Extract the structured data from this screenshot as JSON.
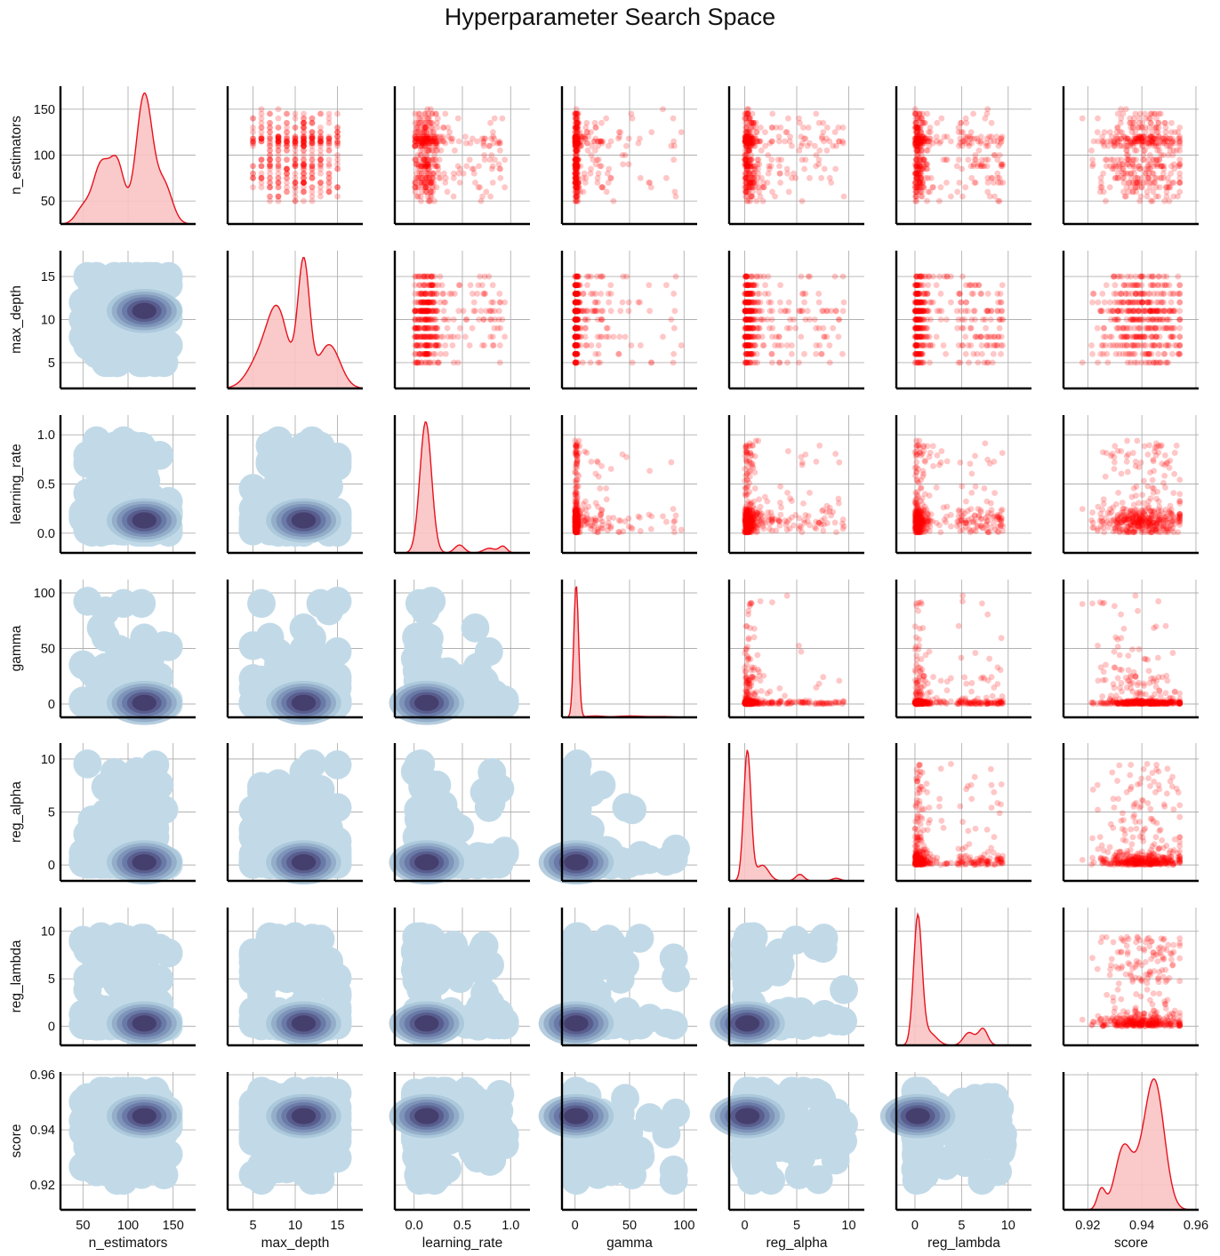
{
  "title": "Hyperparameter Search Space",
  "chart_data": {
    "type": "pairplot",
    "title": "Hyperparameter Search Space",
    "variables": [
      "n_estimators",
      "max_depth",
      "learning_rate",
      "gamma",
      "reg_alpha",
      "reg_lambda",
      "score"
    ],
    "lower_triangle": "kde_filled",
    "upper_triangle": "scatter",
    "diagonal": "kde_1d",
    "colors": {
      "scatter": "#ff0000",
      "diag_line": "#e8111c",
      "diag_fill": "#f9c4c4",
      "kde_light": "#bcd6e6",
      "kde_dark": "#3f3762",
      "grid": "#b0b0b0",
      "axis": "#000000"
    },
    "axes": {
      "n_estimators": {
        "lim": [
          25,
          175
        ],
        "ticks": [
          50,
          100,
          150
        ],
        "tick_labels": [
          "50",
          "100",
          "150"
        ]
      },
      "max_depth": {
        "lim": [
          2,
          18
        ],
        "ticks": [
          5,
          10,
          15
        ],
        "tick_labels": [
          "5",
          "10",
          "15"
        ]
      },
      "learning_rate": {
        "lim": [
          -0.2,
          1.2
        ],
        "ticks": [
          0.0,
          0.5,
          1.0
        ],
        "tick_labels": [
          "0.0",
          "0.5",
          "1.0"
        ]
      },
      "gamma": {
        "lim": [
          -12,
          112
        ],
        "ticks": [
          0,
          50,
          100
        ],
        "tick_labels": [
          "0",
          "50",
          "100"
        ]
      },
      "reg_alpha": {
        "lim": [
          -1.5,
          11.5
        ],
        "ticks": [
          0,
          5,
          10
        ],
        "tick_labels": [
          "0",
          "5",
          "10"
        ]
      },
      "reg_lambda": {
        "lim": [
          -2,
          12.5
        ],
        "ticks": [
          0,
          5,
          10
        ],
        "tick_labels": [
          "0",
          "5",
          "10"
        ]
      },
      "score": {
        "lim": [
          0.911,
          0.961
        ],
        "ticks": [
          0.92,
          0.94,
          0.96
        ],
        "tick_labels": [
          "0.92",
          "0.94",
          "0.96"
        ]
      }
    },
    "marginal_modes": {
      "n_estimators": [
        [
          70,
          0.45,
          9
        ],
        [
          88,
          0.45,
          8
        ],
        [
          118,
          1.0,
          9
        ],
        [
          140,
          0.3,
          9
        ],
        [
          50,
          0.12,
          8
        ]
      ],
      "max_depth": [
        [
          8,
          0.55,
          1.2
        ],
        [
          11,
          1.0,
          0.7
        ],
        [
          6,
          0.25,
          1.5
        ],
        [
          14,
          0.35,
          1.3
        ]
      ],
      "learning_rate": [
        [
          0.12,
          1.0,
          0.06
        ],
        [
          0.47,
          0.06,
          0.05
        ],
        [
          0.78,
          0.035,
          0.06
        ],
        [
          0.92,
          0.05,
          0.04
        ]
      ],
      "gamma": [
        [
          1,
          1.0,
          2.2
        ],
        [
          18,
          0.01,
          8
        ],
        [
          50,
          0.01,
          12
        ],
        [
          80,
          0.006,
          10
        ]
      ],
      "reg_alpha": [
        [
          0.25,
          1.0,
          0.35
        ],
        [
          1.7,
          0.12,
          0.6
        ],
        [
          5.3,
          0.05,
          0.4
        ],
        [
          8.8,
          0.02,
          0.4
        ]
      ],
      "reg_lambda": [
        [
          0.3,
          1.0,
          0.45
        ],
        [
          1.5,
          0.1,
          0.8
        ],
        [
          5.8,
          0.1,
          0.6
        ],
        [
          7.3,
          0.13,
          0.5
        ]
      ],
      "score": [
        [
          0.945,
          1.0,
          0.0035
        ],
        [
          0.933,
          0.5,
          0.003
        ],
        [
          0.925,
          0.18,
          0.0015
        ],
        [
          0.94,
          0.3,
          0.004
        ]
      ]
    }
  }
}
